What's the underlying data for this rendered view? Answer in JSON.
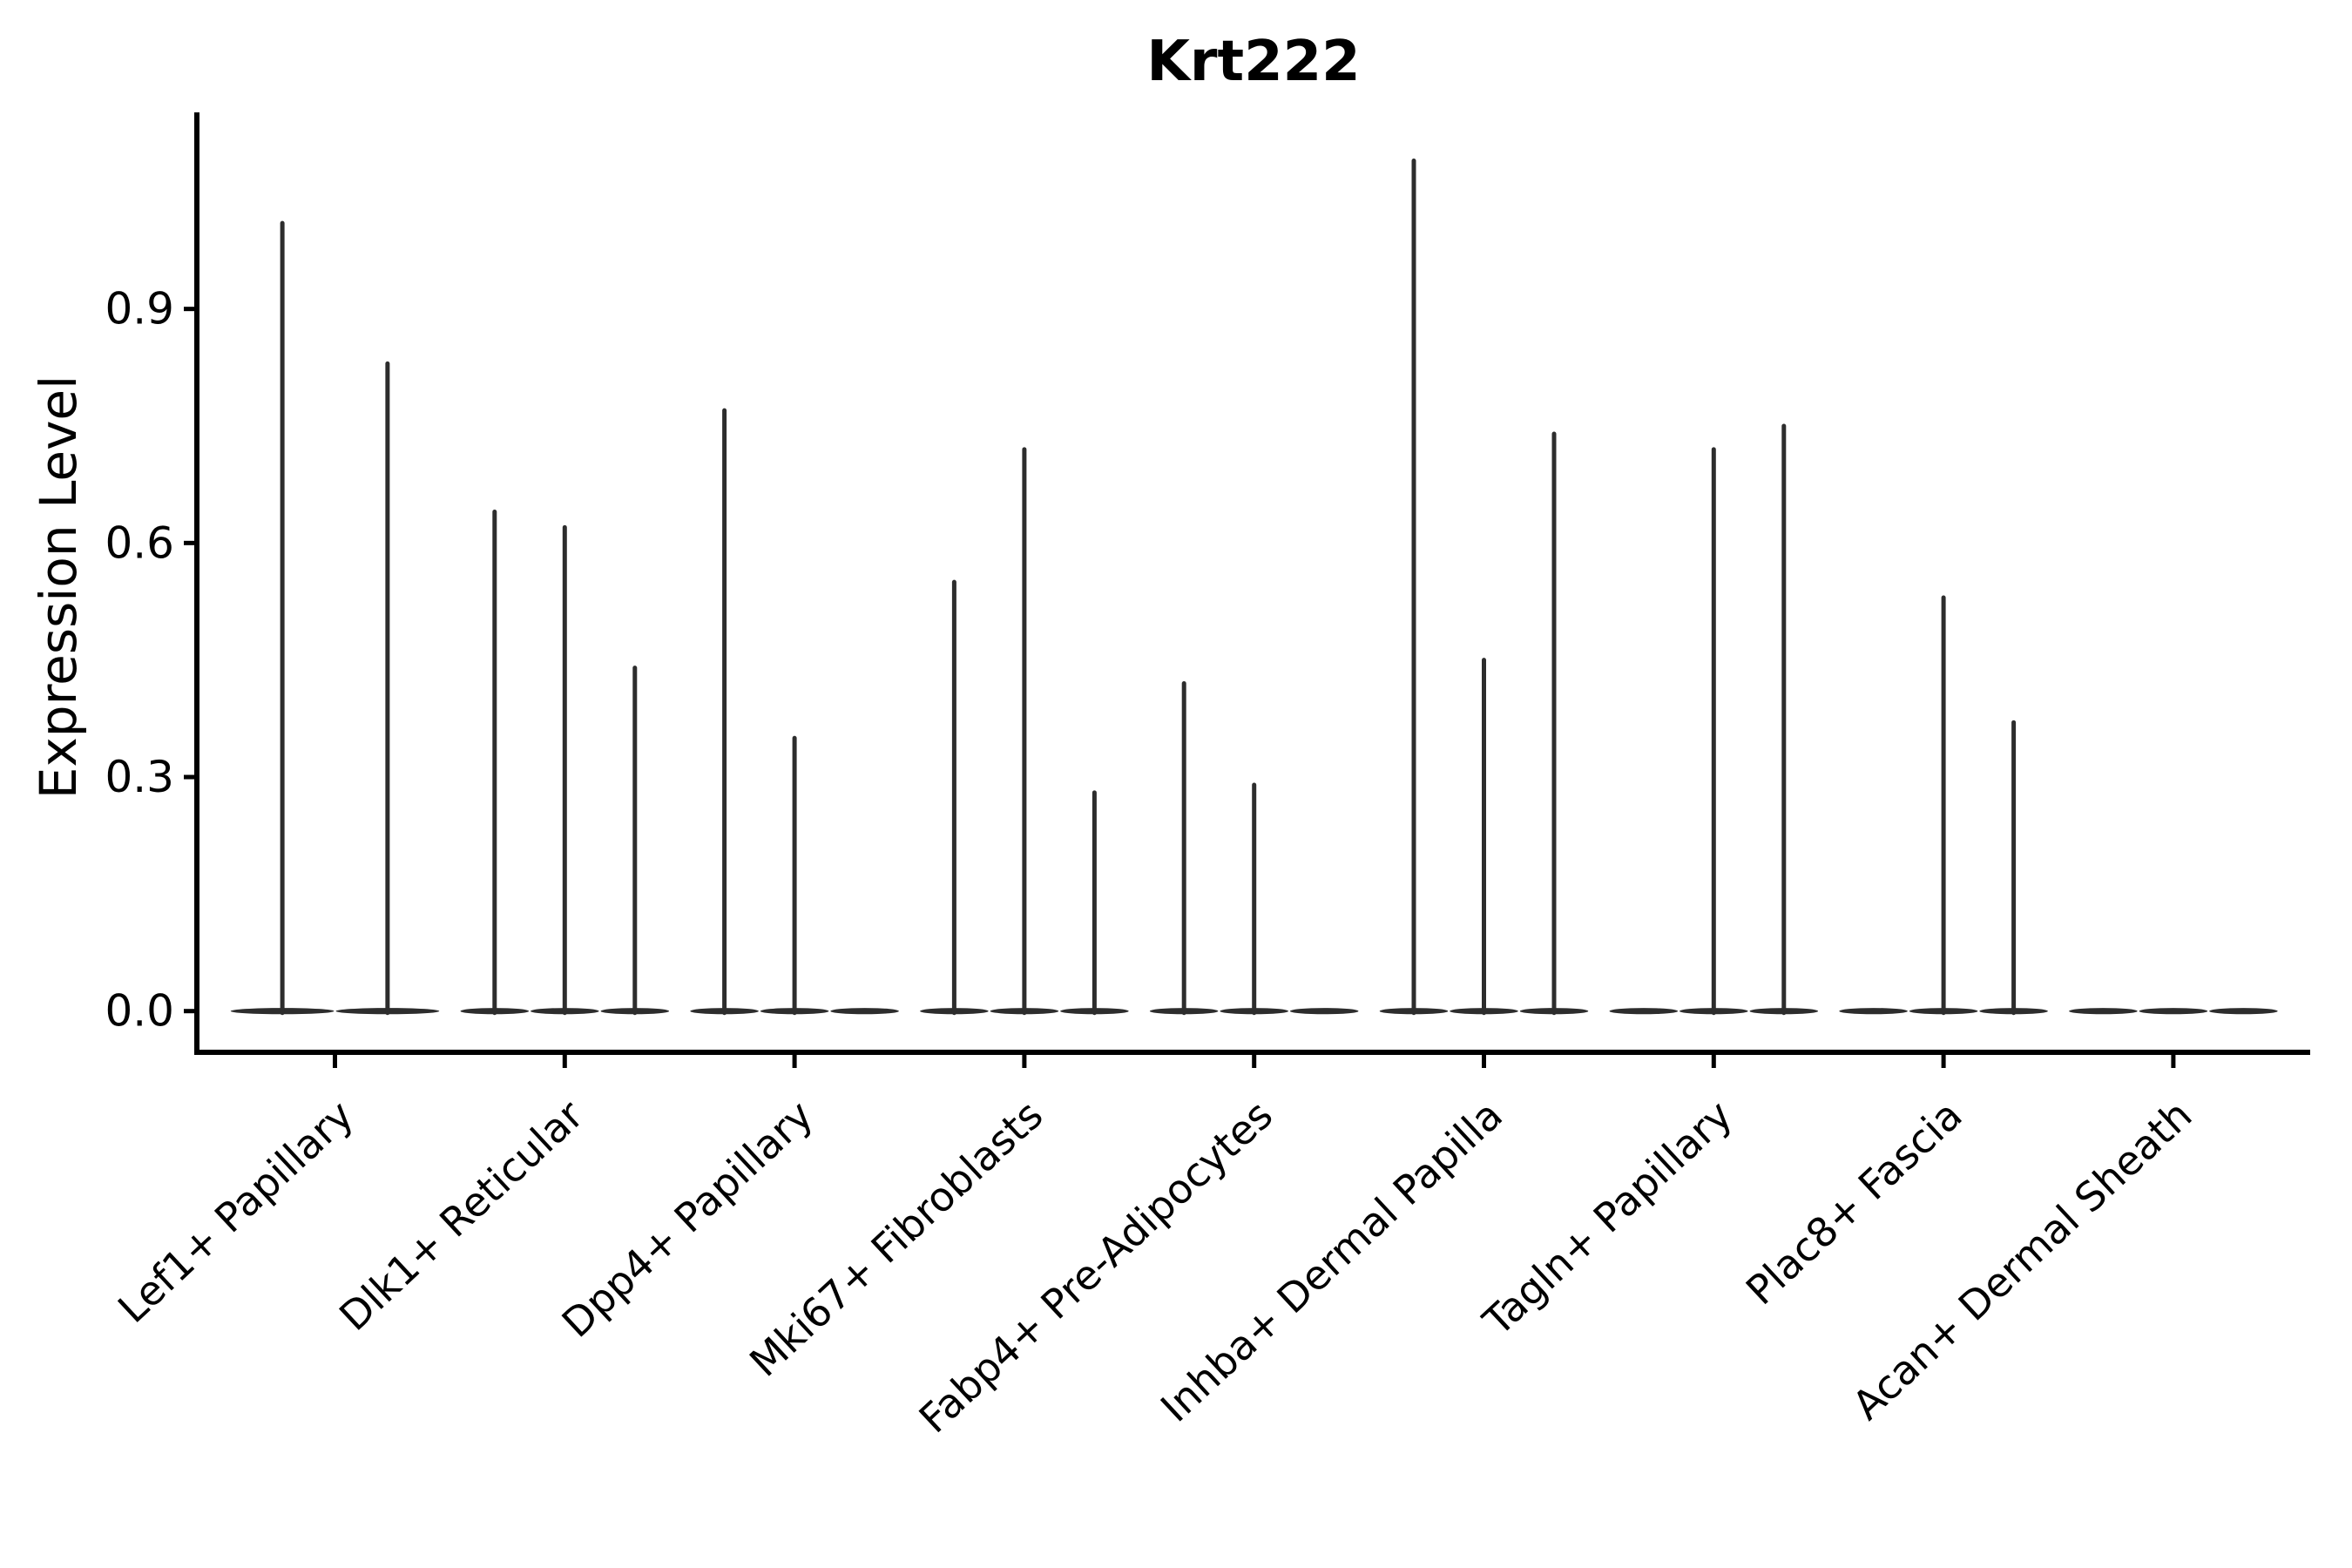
{
  "title": "Krt222",
  "ylabel": "Expression Level",
  "chart_data": {
    "type": "violin",
    "title": "Krt222",
    "xlabel": "",
    "ylabel": "Expression Level",
    "yticks": [
      0.0,
      0.3,
      0.6,
      0.9
    ],
    "ylim": [
      -0.05,
      1.15
    ],
    "grid": false,
    "legend": "none",
    "x_tick_label_rotation_deg": 43,
    "categories": [
      "Lef1+ Papillary",
      "Dlk1+ Reticular",
      "Dpp4+ Papillary",
      "Mki67+ Fibroblasts",
      "Fabp4+ Pre-Adipocytes",
      "Inhba+ Dermal Papilla",
      "Tagln+ Papillary",
      "Plac8+ Fascia",
      "Acan+ Dermal Sheath"
    ],
    "groups": [
      {
        "category": "Lef1+ Papillary",
        "violin_maxima": [
          1.01,
          0.83
        ]
      },
      {
        "category": "Dlk1+ Reticular",
        "violin_maxima": [
          0.64,
          0.62,
          0.44
        ]
      },
      {
        "category": "Dpp4+ Papillary",
        "violin_maxima": [
          0.77,
          0.35,
          0.0
        ]
      },
      {
        "category": "Mki67+ Fibroblasts",
        "violin_maxima": [
          0.55,
          0.72,
          0.28
        ]
      },
      {
        "category": "Fabp4+ Pre-Adipocytes",
        "violin_maxima": [
          0.42,
          0.29,
          0.0
        ]
      },
      {
        "category": "Inhba+ Dermal Papilla",
        "violin_maxima": [
          1.09,
          0.45,
          0.74
        ]
      },
      {
        "category": "Tagln+ Papillary",
        "violin_maxima": [
          0.0,
          0.72,
          0.75
        ]
      },
      {
        "category": "Plac8+ Fascia",
        "violin_maxima": [
          0.0,
          0.53,
          0.37
        ]
      },
      {
        "category": "Acan+ Dermal Sheath",
        "violin_maxima": [
          0.0,
          0.0,
          0.0
        ]
      }
    ],
    "description": "Each violin is collapsed to a flat body at expression 0 with a thin vertical spike reaching its maximum expression value.",
    "colors": {
      "violin": "#2d2d2d",
      "axis": "#000000",
      "text": "#000000",
      "background": "#ffffff"
    }
  }
}
